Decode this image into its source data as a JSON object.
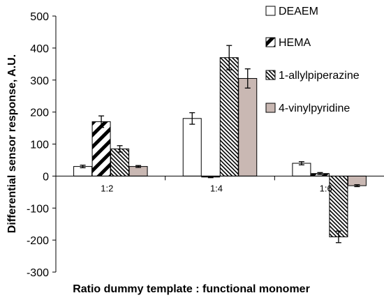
{
  "chart_data": {
    "type": "bar",
    "categories": [
      "1:2",
      "1:4",
      "1:6"
    ],
    "series": [
      {
        "name": "DEAEM",
        "values": [
          30,
          180,
          40
        ],
        "errors": [
          4,
          18,
          5
        ],
        "fill": "#ffffff",
        "pattern": "solid"
      },
      {
        "name": "HEMA",
        "values": [
          170,
          -3,
          8
        ],
        "errors": [
          18,
          2,
          3
        ],
        "fill": "#000000",
        "pattern": "wide-diagonal"
      },
      {
        "name": "1-allylpiperazine",
        "values": [
          85,
          370,
          -190
        ],
        "errors": [
          10,
          38,
          18
        ],
        "fill": "#000000",
        "pattern": "fine-diagonal"
      },
      {
        "name": "4-vinylpyridine",
        "values": [
          30,
          305,
          -30
        ],
        "errors": [
          3,
          30,
          3
        ],
        "fill": "#c9b8b3",
        "pattern": "solid"
      }
    ],
    "yticks": [
      "500",
      "400",
      "300",
      "200",
      "100",
      "0",
      "-100",
      "-200",
      "-300"
    ],
    "ylim": [
      -300,
      500
    ],
    "ylabel": "Differential sensor response, A.U.",
    "xlabel": "Ratio dummy template : functional monomer",
    "grid": false,
    "legend_position": "right"
  }
}
